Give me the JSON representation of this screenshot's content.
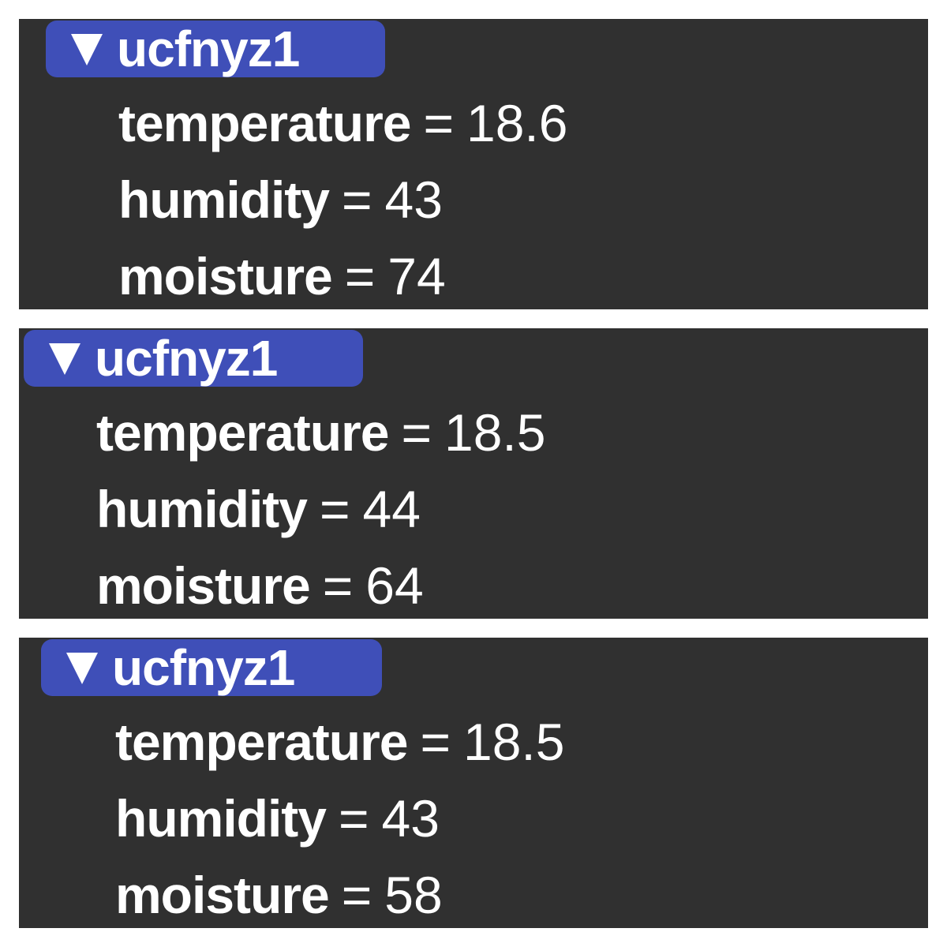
{
  "panels": [
    {
      "name": "ucfnyz1",
      "props": [
        {
          "key": "temperature",
          "eq": "=",
          "value": "18.6"
        },
        {
          "key": "humidity",
          "eq": "=",
          "value": "43"
        },
        {
          "key": "moisture",
          "eq": "=",
          "value": "74"
        }
      ]
    },
    {
      "name": "ucfnyz1",
      "props": [
        {
          "key": "temperature",
          "eq": "=",
          "value": "18.5"
        },
        {
          "key": "humidity",
          "eq": "=",
          "value": "44"
        },
        {
          "key": "moisture",
          "eq": "=",
          "value": "64"
        }
      ]
    },
    {
      "name": "ucfnyz1",
      "props": [
        {
          "key": "temperature",
          "eq": "=",
          "value": "18.5"
        },
        {
          "key": "humidity",
          "eq": "=",
          "value": "43"
        },
        {
          "key": "moisture",
          "eq": "=",
          "value": "58"
        }
      ]
    }
  ],
  "colors": {
    "panel_bg": "#303030",
    "header_bg": "#3f4fb8",
    "text": "#ffffff"
  },
  "icons": {
    "toggle": "triangle-down-icon"
  }
}
